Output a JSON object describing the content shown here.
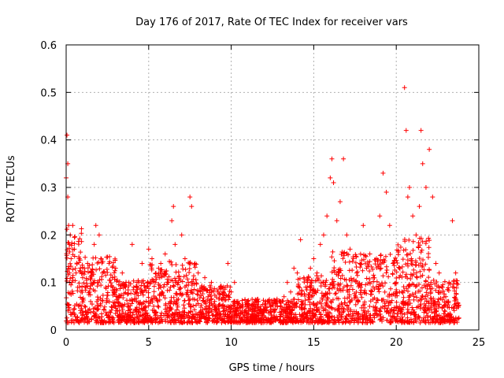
{
  "chart_data": {
    "type": "scatter",
    "title": "Day 176 of 2017, Rate Of TEC Index for receiver vars",
    "xlabel": "GPS time / hours",
    "ylabel": "ROTI / TECUs",
    "xlim": [
      0,
      25
    ],
    "ylim": [
      0,
      0.6
    ],
    "x_ticks": [
      0,
      5,
      10,
      15,
      20,
      25
    ],
    "y_ticks": [
      0,
      0.1,
      0.2,
      0.3,
      0.4,
      0.5,
      0.6
    ],
    "x_tick_labels": [
      "0",
      "5",
      "10",
      "15",
      "20",
      "25"
    ],
    "y_tick_labels": [
      "0",
      "0.1",
      "0.2",
      "0.3",
      "0.4",
      "0.5",
      "0.6"
    ],
    "grid": true,
    "marker": "plus",
    "color": "#ff0000",
    "series": [
      {
        "x": [
          0.0,
          0.05,
          0.1,
          0.1,
          0.15,
          0.2,
          0.2,
          0.25,
          0.3,
          0.35,
          0.4,
          0.5,
          0.6,
          0.7,
          0.8,
          0.9,
          1.0,
          1.1,
          1.2,
          1.3,
          1.5,
          1.7,
          1.8,
          1.9,
          2.0,
          2.1,
          2.2,
          2.4,
          2.6,
          2.8,
          3.0,
          3.2,
          3.4,
          3.6,
          3.8,
          4.0,
          4.2,
          4.4,
          4.6,
          4.8,
          5.0,
          5.2,
          5.4,
          5.6,
          5.8,
          6.0,
          6.2,
          6.4,
          6.5,
          6.6,
          6.8,
          7.0,
          7.2,
          7.4,
          7.5,
          7.6,
          7.8,
          8.0,
          8.2,
          8.4,
          8.6,
          8.8,
          9.0,
          9.2,
          9.4,
          9.6,
          9.8,
          10.0,
          10.2,
          10.4,
          10.6,
          10.8,
          11.0,
          11.2,
          11.4,
          11.6,
          11.8,
          12.0,
          12.2,
          12.4,
          12.6,
          12.8,
          13.0,
          13.2,
          13.4,
          13.6,
          13.8,
          14.0,
          14.2,
          14.4,
          14.6,
          14.8,
          15.0,
          15.2,
          15.4,
          15.6,
          15.8,
          16.0,
          16.1,
          16.2,
          16.4,
          16.6,
          16.8,
          17.0,
          17.2,
          17.4,
          17.6,
          17.8,
          18.0,
          18.2,
          18.4,
          18.6,
          18.8,
          19.0,
          19.2,
          19.4,
          19.6,
          19.8,
          20.0,
          20.2,
          20.4,
          20.5,
          20.6,
          20.7,
          20.8,
          21.0,
          21.2,
          21.4,
          21.5,
          21.6,
          21.8,
          22.0,
          22.2,
          22.4,
          22.6,
          22.8,
          23.0,
          23.2,
          23.4,
          23.6
        ],
        "y": [
          0.32,
          0.41,
          0.35,
          0.28,
          0.22,
          0.18,
          0.12,
          0.2,
          0.15,
          0.1,
          0.22,
          0.17,
          0.12,
          0.09,
          0.15,
          0.08,
          0.11,
          0.13,
          0.09,
          0.14,
          0.12,
          0.18,
          0.22,
          0.1,
          0.2,
          0.15,
          0.12,
          0.09,
          0.14,
          0.11,
          0.13,
          0.07,
          0.12,
          0.09,
          0.1,
          0.18,
          0.08,
          0.1,
          0.14,
          0.09,
          0.17,
          0.15,
          0.1,
          0.13,
          0.08,
          0.16,
          0.1,
          0.23,
          0.26,
          0.18,
          0.1,
          0.2,
          0.15,
          0.1,
          0.28,
          0.26,
          0.14,
          0.12,
          0.09,
          0.11,
          0.07,
          0.1,
          0.06,
          0.08,
          0.09,
          0.05,
          0.14,
          0.08,
          0.1,
          0.06,
          0.05,
          0.04,
          0.06,
          0.05,
          0.04,
          0.06,
          0.05,
          0.04,
          0.06,
          0.05,
          0.04,
          0.05,
          0.06,
          0.07,
          0.1,
          0.08,
          0.13,
          0.12,
          0.19,
          0.11,
          0.09,
          0.13,
          0.15,
          0.12,
          0.18,
          0.2,
          0.24,
          0.32,
          0.36,
          0.31,
          0.23,
          0.27,
          0.36,
          0.2,
          0.17,
          0.15,
          0.12,
          0.14,
          0.22,
          0.13,
          0.16,
          0.11,
          0.15,
          0.24,
          0.33,
          0.29,
          0.22,
          0.14,
          0.1,
          0.08,
          0.06,
          0.51,
          0.42,
          0.28,
          0.3,
          0.24,
          0.2,
          0.26,
          0.42,
          0.35,
          0.3,
          0.38,
          0.28,
          0.14,
          0.12,
          0.09,
          0.07,
          0.1,
          0.23,
          0.12
        ]
      }
    ]
  }
}
